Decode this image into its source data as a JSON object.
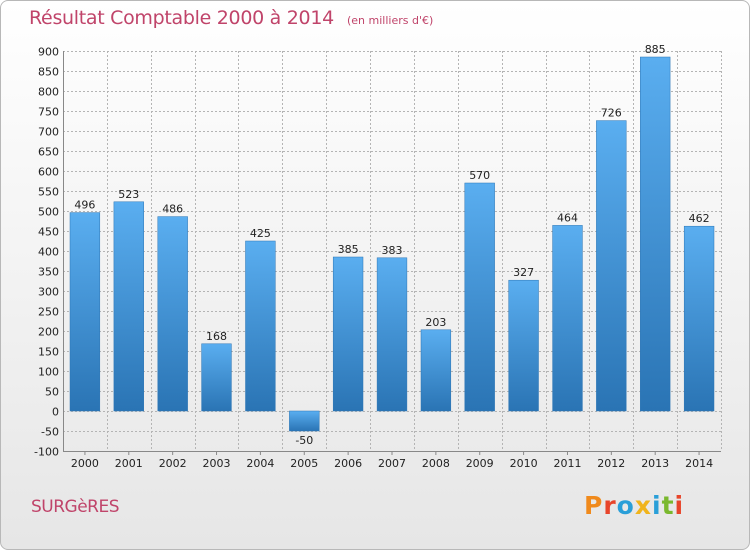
{
  "header": {
    "title": "Résultat Comptable 2000 à 2014",
    "subtitle": "(en milliers d'€)"
  },
  "footer": {
    "place": "SURGèRES",
    "logo_text": "Proxiti",
    "logo_colors": [
      "#f08a1c",
      "#e8452b",
      "#2a9fd8",
      "#f0b41c",
      "#2a9fd8",
      "#7ab82e",
      "#e8452b"
    ]
  },
  "colors": {
    "bar_top": "#5aaef0",
    "bar_bottom": "#2a74b4",
    "grid": "#b4b4b4",
    "title": "#c0446a"
  },
  "chart_data": {
    "type": "bar",
    "title": "Résultat Comptable 2000 à 2014",
    "subtitle": "(en milliers d'€)",
    "categories": [
      "2000",
      "2001",
      "2002",
      "2003",
      "2004",
      "2005",
      "2006",
      "2007",
      "2008",
      "2009",
      "2010",
      "2011",
      "2012",
      "2013",
      "2014"
    ],
    "values": [
      496,
      523,
      486,
      168,
      425,
      -50,
      385,
      383,
      203,
      570,
      327,
      464,
      726,
      885,
      462
    ],
    "ylim": [
      -100,
      900
    ],
    "yticks": [
      -100,
      -50,
      0,
      50,
      100,
      150,
      200,
      250,
      300,
      350,
      400,
      450,
      500,
      550,
      600,
      650,
      700,
      750,
      800,
      850,
      900
    ],
    "grid": true,
    "xlabel": "",
    "ylabel": ""
  }
}
